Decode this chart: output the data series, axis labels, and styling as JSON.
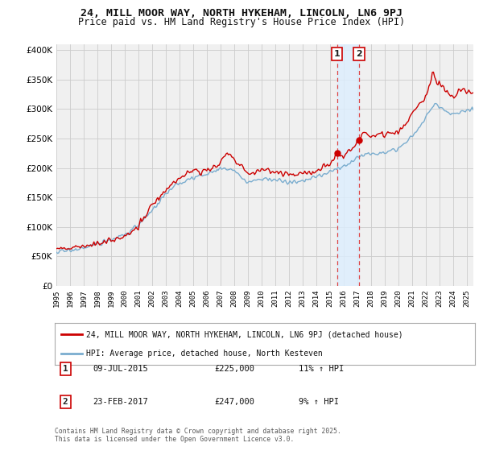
{
  "title": "24, MILL MOOR WAY, NORTH HYKEHAM, LINCOLN, LN6 9PJ",
  "subtitle": "Price paid vs. HM Land Registry's House Price Index (HPI)",
  "red_label": "24, MILL MOOR WAY, NORTH HYKEHAM, LINCOLN, LN6 9PJ (detached house)",
  "blue_label": "HPI: Average price, detached house, North Kesteven",
  "footnote": "Contains HM Land Registry data © Crown copyright and database right 2025.\nThis data is licensed under the Open Government Licence v3.0.",
  "transaction1": {
    "label": "1",
    "date": "09-JUL-2015",
    "price": "£225,000",
    "pct": "11% ↑ HPI",
    "year": 2015.52,
    "value": 225000
  },
  "transaction2": {
    "label": "2",
    "date": "23-FEB-2017",
    "price": "£247,000",
    "pct": "9% ↑ HPI",
    "year": 2017.14,
    "value": 247000
  },
  "ylim": [
    0,
    410000
  ],
  "yticks": [
    0,
    50000,
    100000,
    150000,
    200000,
    250000,
    300000,
    350000,
    400000
  ],
  "background_color": "#ffffff",
  "plot_bg_color": "#f0f0f0",
  "red_color": "#cc0000",
  "blue_color": "#7aadcf",
  "vline_color": "#dd4444",
  "shade_color": "#ddeeff",
  "vline1_x": 2015.52,
  "vline2_x": 2017.14,
  "xmin": 1995,
  "xmax": 2025.5
}
